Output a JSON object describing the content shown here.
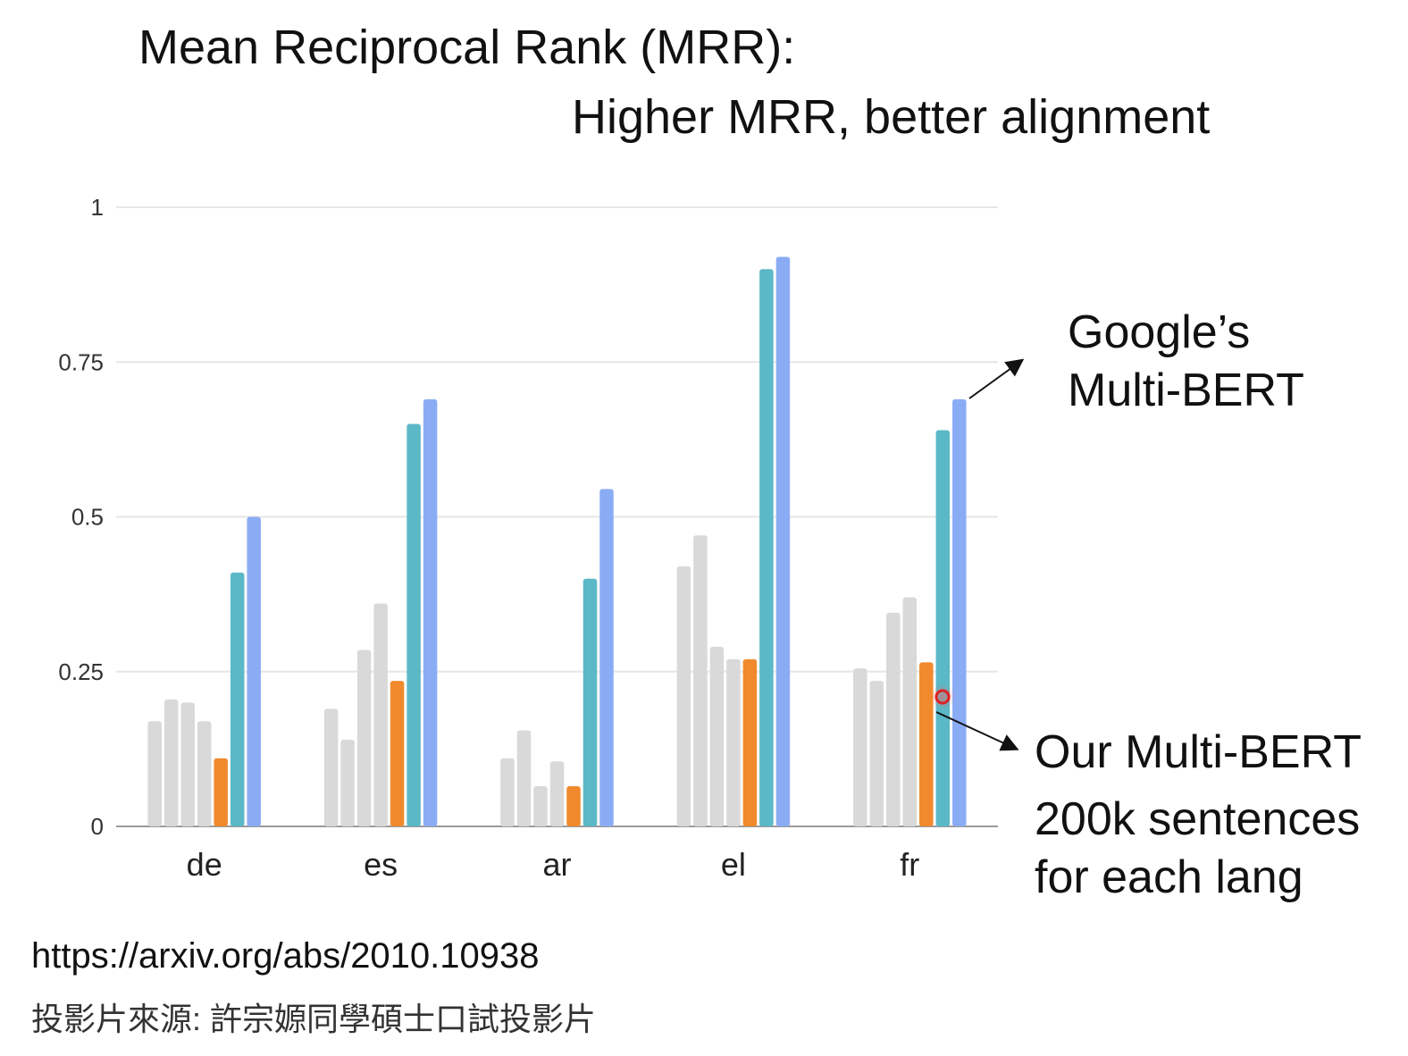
{
  "header": {
    "title": "Mean Reciprocal Rank (MRR):",
    "subtitle": "Higher MRR, better alignment"
  },
  "annotations": {
    "google": [
      "Google’s",
      "Multi-BERT"
    ],
    "ours": [
      "Our Multi-BERT",
      "200k sentences",
      "for each lang"
    ]
  },
  "footer": {
    "url": "https://arxiv.org/abs/2010.10938",
    "source": "投影片來源: 許宗嫄同學碩士口試投影片"
  },
  "colors": {
    "baseline": "#d9d9d9",
    "ours": "#f08a2c",
    "teal": "#5bb8c6",
    "google": "#8aacf5",
    "grid": "#e6e6e6",
    "axis": "#9a9a9a",
    "pointer": "#e02020"
  },
  "chart_data": {
    "type": "bar",
    "categories": [
      "de",
      "es",
      "ar",
      "el",
      "fr"
    ],
    "ylim": [
      0,
      1
    ],
    "yticks": [
      0,
      0.25,
      0.5,
      0.75,
      1
    ],
    "ytick_labels": [
      "0",
      "0.25",
      "0.5",
      "0.75",
      "1"
    ],
    "grid": true,
    "legend": "none",
    "series": [
      {
        "color_key": "baseline",
        "values": [
          0.17,
          0.19,
          0.11,
          0.42,
          0.255
        ]
      },
      {
        "color_key": "baseline",
        "values": [
          0.205,
          0.14,
          0.155,
          0.47,
          0.235
        ]
      },
      {
        "color_key": "baseline",
        "values": [
          0.2,
          0.285,
          0.065,
          0.29,
          0.345
        ]
      },
      {
        "color_key": "baseline",
        "values": [
          0.17,
          0.36,
          0.105,
          0.27,
          0.37
        ]
      },
      {
        "color_key": "ours",
        "values": [
          0.11,
          0.235,
          0.065,
          0.27,
          0.265
        ]
      },
      {
        "color_key": "teal",
        "values": [
          0.41,
          0.65,
          0.4,
          0.9,
          0.64
        ]
      },
      {
        "color_key": "google",
        "values": [
          0.5,
          0.69,
          0.545,
          0.92,
          0.69
        ]
      }
    ]
  }
}
